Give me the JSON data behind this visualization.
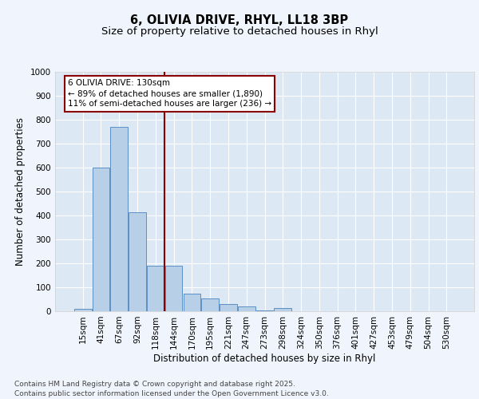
{
  "title_line1": "6, OLIVIA DRIVE, RHYL, LL18 3BP",
  "title_line2": "Size of property relative to detached houses in Rhyl",
  "xlabel": "Distribution of detached houses by size in Rhyl",
  "ylabel": "Number of detached properties",
  "categories": [
    "15sqm",
    "41sqm",
    "67sqm",
    "92sqm",
    "118sqm",
    "144sqm",
    "170sqm",
    "195sqm",
    "221sqm",
    "247sqm",
    "273sqm",
    "298sqm",
    "324sqm",
    "350sqm",
    "376sqm",
    "401sqm",
    "427sqm",
    "453sqm",
    "479sqm",
    "504sqm",
    "530sqm"
  ],
  "values": [
    10,
    600,
    770,
    415,
    190,
    190,
    75,
    55,
    30,
    20,
    5,
    15,
    0,
    0,
    0,
    0,
    0,
    0,
    0,
    0,
    0
  ],
  "bar_color": "#b8cfe8",
  "bar_edge_color": "#5b8fc4",
  "vline_color": "#8b0000",
  "vline_position": 4.5,
  "annotation_box_text": "6 OLIVIA DRIVE: 130sqm\n← 89% of detached houses are smaller (1,890)\n11% of semi-detached houses are larger (236) →",
  "annotation_box_edge_color": "#8b0000",
  "annotation_text_color": "#000000",
  "plot_bg_color": "#dde8f5",
  "fig_bg_color": "#f0f4fc",
  "grid_color": "#ffffff",
  "ylim": [
    0,
    1000
  ],
  "yticks": [
    0,
    100,
    200,
    300,
    400,
    500,
    600,
    700,
    800,
    900,
    1000
  ],
  "footer_line1": "Contains HM Land Registry data © Crown copyright and database right 2025.",
  "footer_line2": "Contains public sector information licensed under the Open Government Licence v3.0.",
  "title_fontsize": 10.5,
  "subtitle_fontsize": 9.5,
  "axis_label_fontsize": 8.5,
  "tick_fontsize": 7.5,
  "annotation_fontsize": 7.5,
  "footer_fontsize": 6.5
}
